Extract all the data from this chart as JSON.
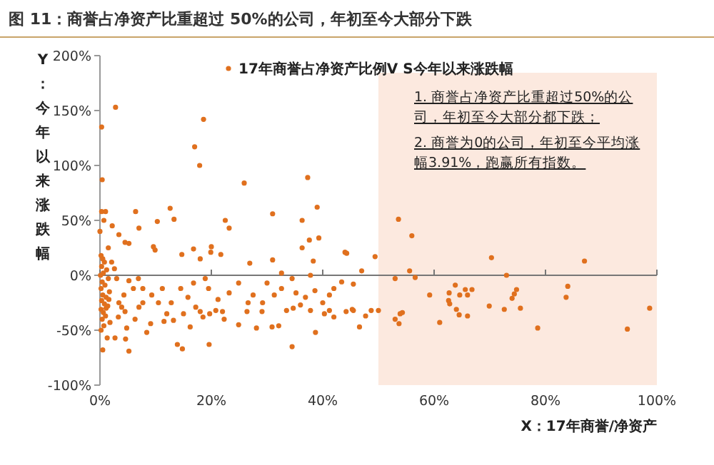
{
  "chart_data": {
    "type": "scatter",
    "title": "图 11：商誉占净资产比重超过 50%的公司，年初至今大部分下跌",
    "xlabel": "X：17年商誉/净资产",
    "ylabel": "Y：今年以来涨跌幅",
    "xlim": [
      0,
      100
    ],
    "xticks": [
      {
        "value": 0,
        "label": "0%"
      },
      {
        "value": 20,
        "label": "20%"
      },
      {
        "value": 40,
        "label": "40%"
      },
      {
        "value": 60,
        "label": "60%"
      },
      {
        "value": 80,
        "label": "80%"
      },
      {
        "value": 100,
        "label": "100%"
      }
    ],
    "ylim": [
      -100,
      200
    ],
    "yticks": [
      {
        "value": -100,
        "label": "-100%"
      },
      {
        "value": -50,
        "label": "-50%"
      },
      {
        "value": 0,
        "label": "0%"
      },
      {
        "value": 50,
        "label": "50%"
      },
      {
        "value": 100,
        "label": "100%"
      },
      {
        "value": 150,
        "label": "150%"
      },
      {
        "value": 200,
        "label": "200%"
      }
    ],
    "legend": "top",
    "marker": "circle",
    "bands": [
      {
        "axis": "x",
        "from": 50,
        "to": 100,
        "color": "#fce9df"
      }
    ],
    "annotations": [
      "1. 商誉占净资产比重超过50%的公司，年初至今大部分都下跌；",
      "2. 商誉为0的公司，年初至今平均涨幅3.91%，跑赢所有指数。"
    ],
    "series": [
      {
        "name": "17年商誉占净资产比例V S今年以来涨跌幅",
        "color": "#e0701e",
        "x": [
          2.8,
          0.3,
          18.6,
          17,
          17.9,
          0.4,
          25.9,
          37.3,
          0.3,
          1,
          0.7,
          0,
          6.4,
          12.6,
          13.3,
          10.3,
          7,
          2.2,
          3.4,
          4.5,
          5.2,
          22.5,
          23.2,
          31,
          36.3,
          39,
          39.3,
          37.6,
          36.3,
          44.3,
          38.3,
          31,
          26.9,
          16.8,
          20,
          19.9,
          21.7,
          14.7,
          9.6,
          9.9,
          1.5,
          18,
          32.6,
          53.6,
          56,
          49.4,
          70.3,
          87,
          44,
          47,
          55.6,
          53,
          56.6,
          73,
          63.8,
          65.6,
          66.8,
          74.8,
          84,
          59.2,
          62.7,
          64.6,
          66,
          74.4,
          74,
          83.7,
          62.6,
          62.8,
          69.9,
          72.6,
          75.5,
          98.7,
          64,
          64.5,
          66,
          53.9,
          54.3,
          53,
          53.7,
          61,
          78.6,
          94.7,
          46.6,
          47.7,
          45.3,
          50,
          48.7,
          5.2,
          2.7,
          19.6,
          13.9,
          14.8,
          34.5,
          38.7,
          28.1,
          30.9,
          32.1,
          24.9,
          16.2,
          8.4,
          4.8,
          4.6,
          9.1,
          11.5,
          13.2,
          15,
          18,
          20.8,
          22,
          26.4,
          29.1,
          33.5,
          34.7,
          37.8,
          41.2,
          44.2,
          45.5,
          42,
          40.3,
          40,
          36.9,
          42,
          43.4,
          45.5,
          34.5,
          37.8,
          32.6,
          30,
          27.5,
          24.9,
          23.2,
          21.2,
          19.5,
          18.9,
          16.8,
          15.8,
          14.5,
          12.8,
          11.2,
          10.5,
          9.3,
          7.7,
          7.7,
          6.9,
          6,
          5.2,
          4.3,
          3.9,
          3.3,
          3,
          2.6,
          2.1,
          3.4,
          4.5,
          6.3,
          7,
          12,
          29.2,
          31.3,
          35.2,
          36,
          38.6,
          41.2,
          26.6,
          22.3,
          19.7,
          17.2,
          18.5,
          0.2,
          0.5,
          0.8,
          0.3,
          1.2,
          0.6,
          0.1,
          1.5,
          0.4,
          0.9,
          0.2,
          1.7,
          0.5,
          1.1,
          0.3,
          0.8,
          1.4,
          0.2,
          0.6,
          1,
          0.4,
          1.8,
          0.7,
          0.2,
          1.3,
          0.5,
          1.1,
          1.6
        ],
        "values": [
          153,
          135,
          142,
          117,
          100,
          87,
          84,
          89,
          58,
          58,
          50,
          40,
          58,
          61,
          51,
          49,
          43,
          45,
          37,
          30,
          29,
          50,
          43,
          56,
          50,
          62,
          34,
          32,
          25,
          20,
          13,
          14,
          11,
          24,
          26,
          21,
          19,
          19,
          26,
          23,
          25,
          15,
          2,
          51,
          36,
          17,
          16,
          13,
          21,
          4,
          4,
          -3,
          -2,
          0,
          -9,
          -13,
          -13,
          -13,
          -10,
          -18,
          -16,
          -18,
          -18,
          -17,
          -21,
          -20,
          -23,
          -26,
          -28,
          -31,
          -30,
          -30,
          -31,
          -36,
          -37,
          -35,
          -34,
          -40,
          -44,
          -43,
          -48,
          -49,
          -47,
          -37,
          -31,
          -32,
          -32,
          -69,
          -57,
          -63,
          -63,
          -67,
          -65,
          -52,
          -48,
          -47,
          -46,
          -45,
          -47,
          -52,
          -48,
          -58,
          -44,
          -42,
          -41,
          -35,
          -33,
          -32,
          -33,
          -33,
          -33,
          -32,
          -30,
          -32,
          -32,
          -33,
          -32,
          -38,
          -35,
          -25,
          -20,
          -12,
          -6,
          -8,
          -3,
          0,
          -12,
          -7,
          -18,
          -7,
          -16,
          -22,
          -12,
          -3,
          -7,
          -20,
          -12,
          -25,
          -12,
          -25,
          -18,
          -25,
          -12,
          -3,
          -12,
          -5,
          -18,
          -29,
          -38,
          -3,
          6,
          12,
          -25,
          -33,
          -40,
          -29,
          -35,
          -25,
          -18,
          -16,
          -27,
          -14,
          -18,
          -25,
          -40,
          -35,
          -29,
          -38,
          18,
          15,
          12,
          8,
          5,
          2,
          0,
          -3,
          -6,
          -9,
          -12,
          -15,
          -18,
          -20,
          -23,
          -26,
          -28,
          -31,
          -34,
          -37,
          -40,
          -43,
          -46,
          -50,
          -57,
          -68,
          -30,
          -22
        ]
      }
    ]
  }
}
